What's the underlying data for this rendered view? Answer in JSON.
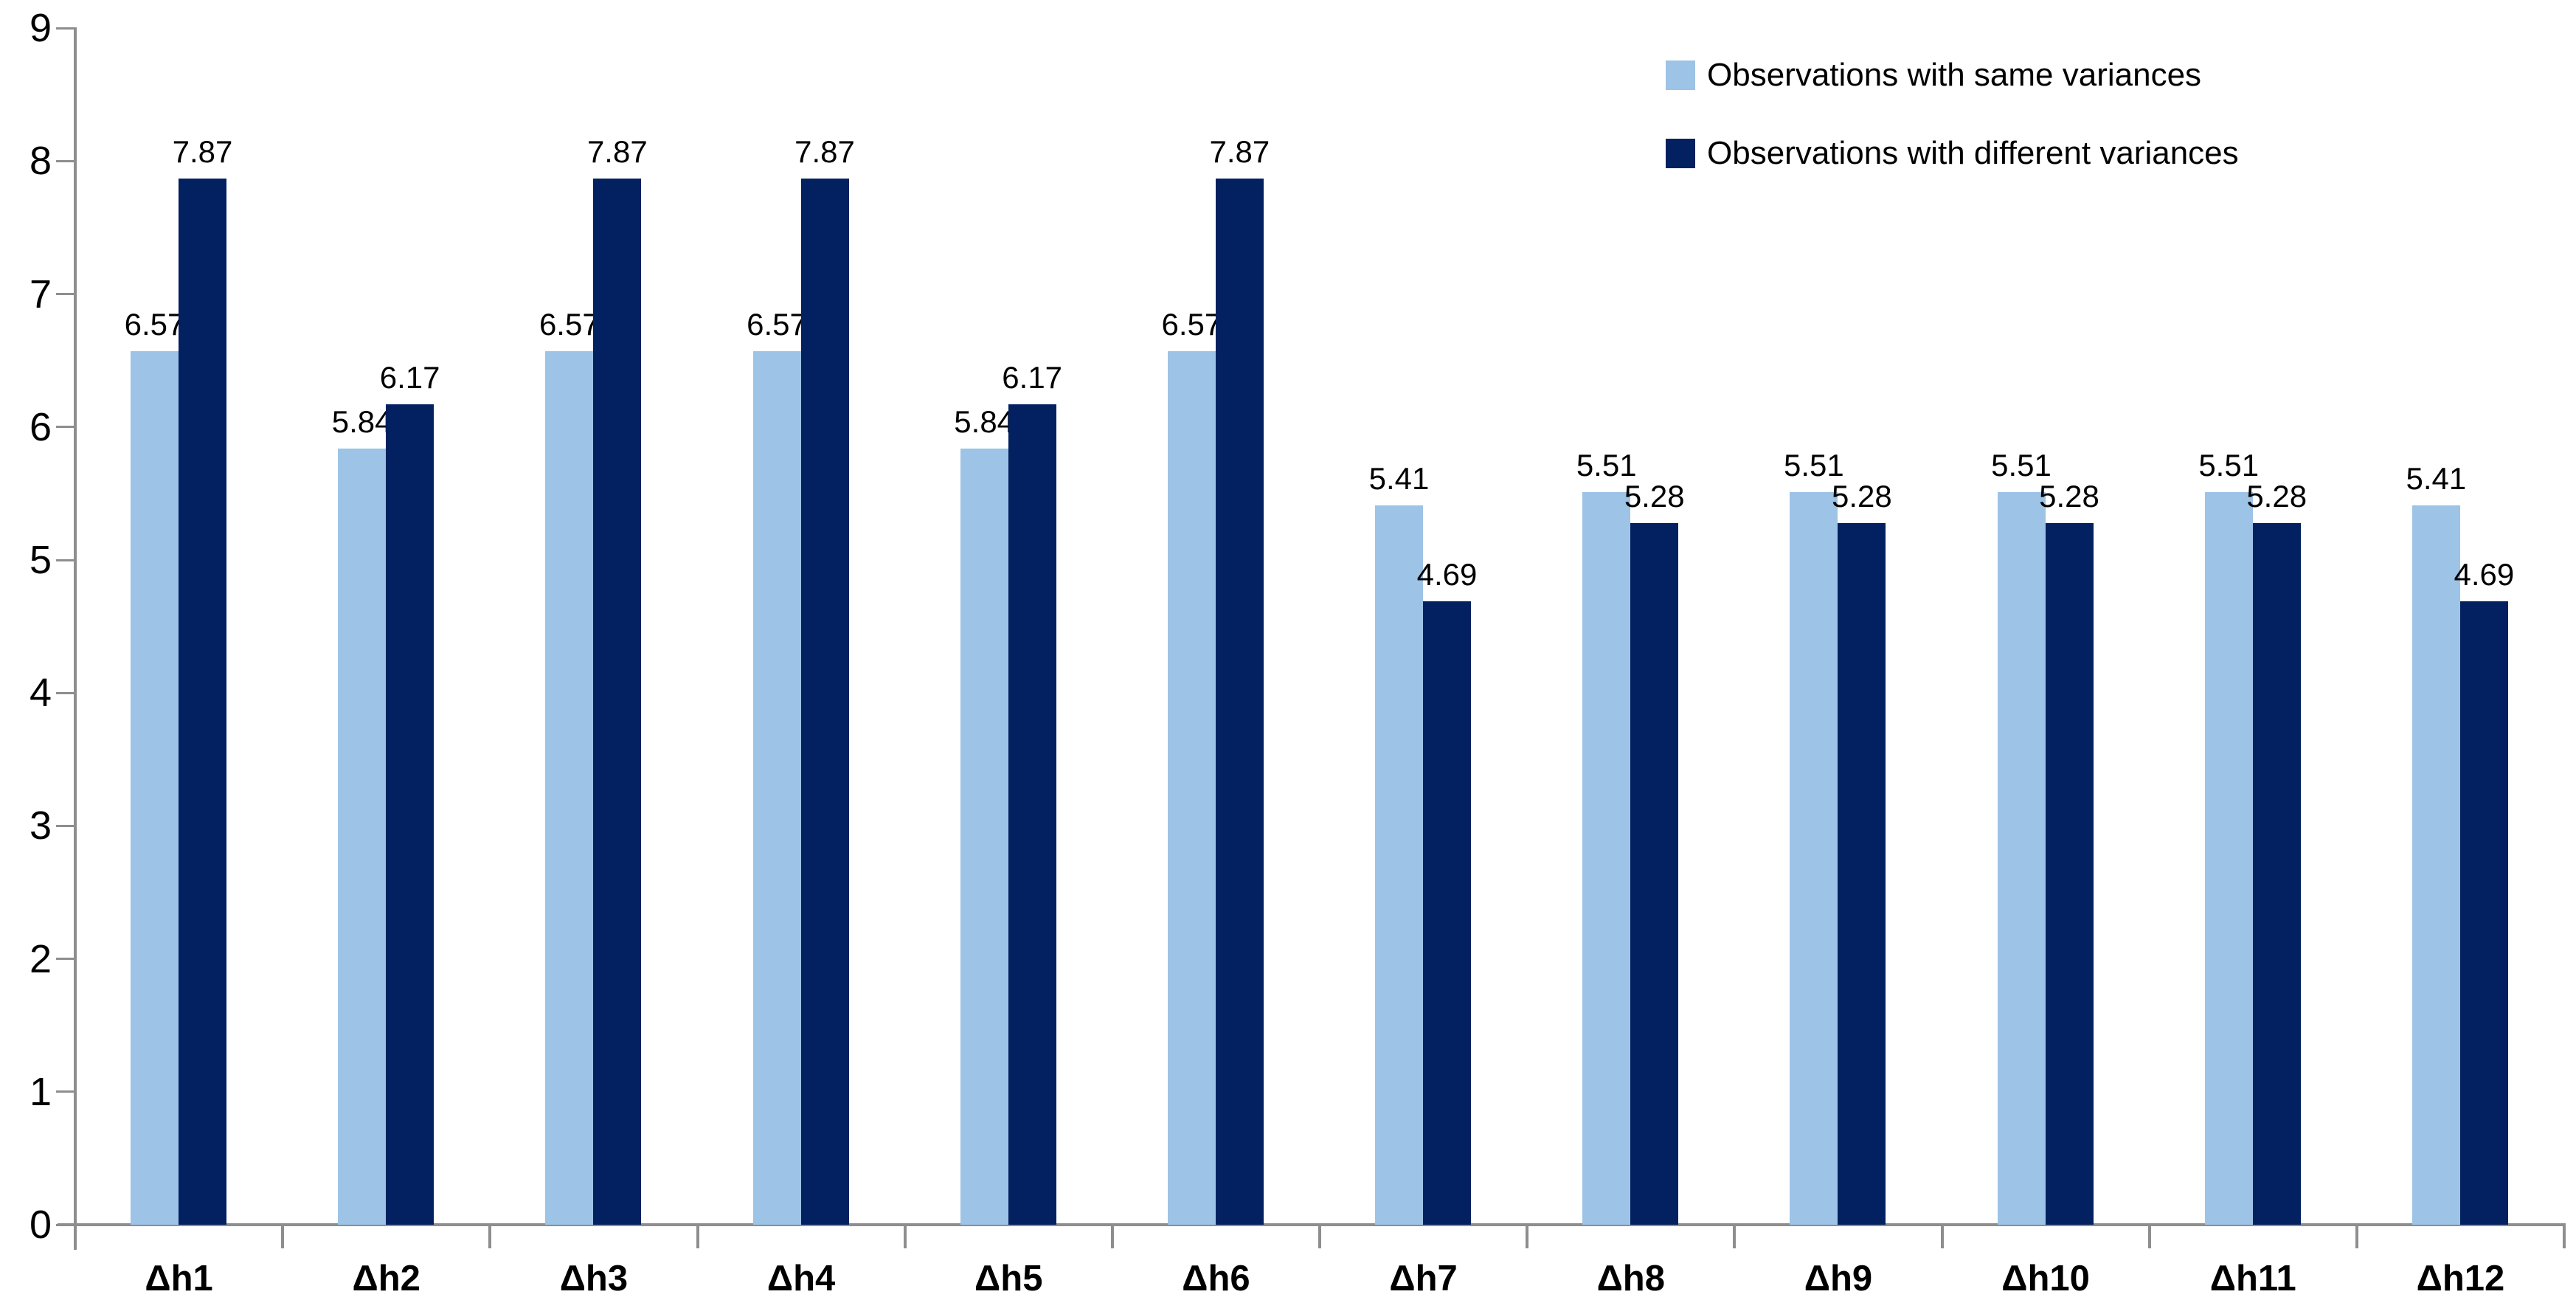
{
  "chart_data": {
    "type": "bar",
    "title": "",
    "categories": [
      "Δh1",
      "Δh2",
      "Δh3",
      "Δh4",
      "Δh5",
      "Δh6",
      "Δh7",
      "Δh8",
      "Δh9",
      "Δh10",
      "Δh11",
      "Δh12"
    ],
    "series": [
      {
        "name": "Observations with same variances",
        "color": "#9DC3E6",
        "values": [
          6.57,
          5.84,
          6.57,
          6.57,
          5.84,
          6.57,
          5.41,
          5.51,
          5.51,
          5.51,
          5.51,
          5.41
        ]
      },
      {
        "name": "Observations with different variances",
        "color": "#032160",
        "values": [
          7.87,
          6.17,
          7.87,
          7.87,
          6.17,
          7.87,
          4.69,
          5.28,
          5.28,
          5.28,
          5.28,
          4.69
        ]
      }
    ],
    "xlabel": "",
    "ylabel": "",
    "ylim": [
      0,
      9
    ],
    "y_ticks": [
      "0",
      "1",
      "2",
      "3",
      "4",
      "5",
      "6",
      "7",
      "8",
      "9"
    ],
    "grid": false,
    "data_labels": true,
    "label_decimals": 2,
    "legend_position": "top-right",
    "axis_color": "#8E8E8E",
    "text_color": "#000000",
    "background_color": "#FFFFFF"
  }
}
